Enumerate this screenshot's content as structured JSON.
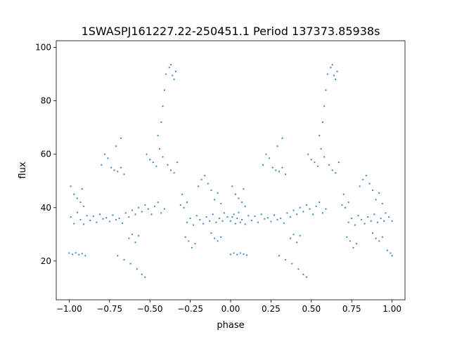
{
  "chart_data": {
    "type": "scatter",
    "title": "1SWASPJ161227.22-250451.1 Period 137373.85938s",
    "xlabel": "phase",
    "ylabel": "flux",
    "xlim": [
      -1.08,
      1.08
    ],
    "ylim": [
      5.5,
      102.5
    ],
    "xticks": [
      {
        "value": -1.0,
        "label": "−1.00"
      },
      {
        "value": -0.75,
        "label": "−0.75"
      },
      {
        "value": -0.5,
        "label": "−0.50"
      },
      {
        "value": -0.25,
        "label": "−0.25"
      },
      {
        "value": 0.0,
        "label": "0.00"
      },
      {
        "value": 0.25,
        "label": "0.25"
      },
      {
        "value": 0.5,
        "label": "0.50"
      },
      {
        "value": 0.75,
        "label": "0.75"
      },
      {
        "value": 1.0,
        "label": "1.00"
      }
    ],
    "yticks": [
      {
        "value": 20,
        "label": "20"
      },
      {
        "value": 40,
        "label": "40"
      },
      {
        "value": 60,
        "label": "60"
      },
      {
        "value": 80,
        "label": "80"
      },
      {
        "value": 100,
        "label": "100"
      }
    ],
    "grid": false,
    "legend": "none",
    "marker_color": "#1f77b4",
    "series": [
      {
        "phase_range": [
          -1.0,
          1.0
        ],
        "folded": true,
        "points": [
          [
            -1.0,
            23.0
          ],
          [
            -0.98,
            22.5
          ],
          [
            -0.96,
            23.1
          ],
          [
            -0.94,
            22.4
          ],
          [
            -0.92,
            22.8
          ],
          [
            -0.9,
            22.0
          ],
          [
            -0.99,
            36.5
          ],
          [
            -0.97,
            34.0
          ],
          [
            -0.95,
            38.2
          ],
          [
            -0.93,
            35.5
          ],
          [
            -0.91,
            33.8
          ],
          [
            -0.89,
            37.0
          ],
          [
            -0.87,
            35.2
          ],
          [
            -0.85,
            36.8
          ],
          [
            -0.83,
            34.5
          ],
          [
            -0.81,
            37.5
          ],
          [
            -0.79,
            35.8
          ],
          [
            -0.77,
            36.2
          ],
          [
            -0.99,
            48.0
          ],
          [
            -0.97,
            45.0
          ],
          [
            -0.95,
            43.5
          ],
          [
            -0.93,
            42.0
          ],
          [
            -0.92,
            47.0
          ],
          [
            -0.91,
            40.5
          ],
          [
            -0.75,
            34.8
          ],
          [
            -0.73,
            37.2
          ],
          [
            -0.71,
            35.5
          ],
          [
            -0.69,
            36.0
          ],
          [
            -0.67,
            34.2
          ],
          [
            -0.65,
            38.0
          ],
          [
            -0.8,
            56.0
          ],
          [
            -0.78,
            60.0
          ],
          [
            -0.76,
            58.5
          ],
          [
            -0.74,
            55.0
          ],
          [
            -0.72,
            54.0
          ],
          [
            -0.7,
            53.5
          ],
          [
            -0.68,
            55.0
          ],
          [
            -0.66,
            52.5
          ],
          [
            -0.71,
            63.0
          ],
          [
            -0.68,
            66.0
          ],
          [
            -0.63,
            28.5
          ],
          [
            -0.61,
            30.0
          ],
          [
            -0.59,
            27.0
          ],
          [
            -0.57,
            29.5
          ],
          [
            -0.7,
            22.0
          ],
          [
            -0.66,
            20.5
          ],
          [
            -0.62,
            19.0
          ],
          [
            -0.58,
            17.0
          ],
          [
            -0.55,
            15.0
          ],
          [
            -0.53,
            14.0
          ],
          [
            -0.63,
            36.5
          ],
          [
            -0.61,
            39.0
          ],
          [
            -0.59,
            37.5
          ],
          [
            -0.57,
            40.0
          ],
          [
            -0.55,
            38.5
          ],
          [
            -0.53,
            41.0
          ],
          [
            -0.51,
            39.5
          ],
          [
            -0.49,
            37.5
          ],
          [
            -0.47,
            40.5
          ],
          [
            -0.45,
            42.0
          ],
          [
            -0.43,
            38.0
          ],
          [
            -0.41,
            39.5
          ],
          [
            -0.52,
            60.0
          ],
          [
            -0.5,
            58.0
          ],
          [
            -0.48,
            57.0
          ],
          [
            -0.46,
            55.5
          ],
          [
            -0.44,
            62.0
          ],
          [
            -0.42,
            59.0
          ],
          [
            -0.45,
            67.0
          ],
          [
            -0.43,
            72.0
          ],
          [
            -0.42,
            78.0
          ],
          [
            -0.41,
            84.0
          ],
          [
            -0.4,
            90.0
          ],
          [
            -0.38,
            92.5
          ],
          [
            -0.36,
            89.5
          ],
          [
            -0.34,
            91.0
          ],
          [
            -0.35,
            88.0
          ],
          [
            -0.37,
            93.5
          ],
          [
            -0.39,
            56.0
          ],
          [
            -0.37,
            54.0
          ],
          [
            -0.35,
            53.0
          ],
          [
            -0.33,
            57.0
          ],
          [
            -0.31,
            41.0
          ],
          [
            -0.29,
            40.0
          ],
          [
            -0.27,
            42.0
          ],
          [
            -0.3,
            45.0
          ],
          [
            -0.28,
            29.0
          ],
          [
            -0.26,
            27.5
          ],
          [
            -0.24,
            25.0
          ],
          [
            -0.22,
            26.5
          ],
          [
            -0.27,
            34.5
          ],
          [
            -0.25,
            36.0
          ],
          [
            -0.23,
            33.5
          ],
          [
            -0.21,
            37.0
          ],
          [
            -0.19,
            35.5
          ],
          [
            -0.17,
            34.0
          ],
          [
            -0.15,
            36.5
          ],
          [
            -0.13,
            35.0
          ],
          [
            -0.11,
            37.5
          ],
          [
            -0.09,
            34.5
          ],
          [
            -0.07,
            36.0
          ],
          [
            -0.05,
            35.0
          ],
          [
            -0.2,
            48.0
          ],
          [
            -0.18,
            50.5
          ],
          [
            -0.16,
            52.0
          ],
          [
            -0.14,
            49.0
          ],
          [
            -0.12,
            46.5
          ],
          [
            -0.1,
            43.0
          ],
          [
            -0.08,
            45.5
          ],
          [
            -0.06,
            41.5
          ],
          [
            -0.12,
            30.5
          ],
          [
            -0.1,
            28.5
          ],
          [
            -0.08,
            27.5
          ],
          [
            -0.06,
            29.0
          ],
          [
            -0.04,
            38.0
          ],
          [
            -0.02,
            36.5
          ],
          [
            0.0,
            35.0
          ],
          [
            0.02,
            37.5
          ],
          [
            0.04,
            36.0
          ],
          [
            0.06,
            34.5
          ],
          [
            0.0,
            22.5
          ],
          [
            0.02,
            23.0
          ],
          [
            0.04,
            22.4
          ],
          [
            0.06,
            23.0
          ],
          [
            0.08,
            22.6
          ],
          [
            0.1,
            22.2
          ],
          [
            0.01,
            36.5
          ],
          [
            0.03,
            34.0
          ],
          [
            0.05,
            38.2
          ],
          [
            0.07,
            35.5
          ],
          [
            0.09,
            33.8
          ],
          [
            0.11,
            37.0
          ],
          [
            0.13,
            35.2
          ],
          [
            0.15,
            36.8
          ],
          [
            0.17,
            34.5
          ],
          [
            0.19,
            37.5
          ],
          [
            0.21,
            35.8
          ],
          [
            0.23,
            36.2
          ],
          [
            0.01,
            48.0
          ],
          [
            0.03,
            45.0
          ],
          [
            0.05,
            43.5
          ],
          [
            0.07,
            42.0
          ],
          [
            0.08,
            47.0
          ],
          [
            0.09,
            40.5
          ],
          [
            0.25,
            34.8
          ],
          [
            0.27,
            37.2
          ],
          [
            0.29,
            35.5
          ],
          [
            0.31,
            36.0
          ],
          [
            0.33,
            34.2
          ],
          [
            0.35,
            38.0
          ],
          [
            0.2,
            56.0
          ],
          [
            0.22,
            60.0
          ],
          [
            0.24,
            58.5
          ],
          [
            0.26,
            55.0
          ],
          [
            0.28,
            54.0
          ],
          [
            0.3,
            53.5
          ],
          [
            0.32,
            55.0
          ],
          [
            0.34,
            52.5
          ],
          [
            0.29,
            63.0
          ],
          [
            0.32,
            66.0
          ],
          [
            0.37,
            28.5
          ],
          [
            0.39,
            30.0
          ],
          [
            0.41,
            27.0
          ],
          [
            0.43,
            29.5
          ],
          [
            0.3,
            22.0
          ],
          [
            0.34,
            20.5
          ],
          [
            0.38,
            19.0
          ],
          [
            0.42,
            17.0
          ],
          [
            0.45,
            15.0
          ],
          [
            0.47,
            14.0
          ],
          [
            0.37,
            36.5
          ],
          [
            0.39,
            39.0
          ],
          [
            0.41,
            37.5
          ],
          [
            0.43,
            40.0
          ],
          [
            0.45,
            38.5
          ],
          [
            0.47,
            41.0
          ],
          [
            0.49,
            39.5
          ],
          [
            0.51,
            37.5
          ],
          [
            0.53,
            40.5
          ],
          [
            0.55,
            42.0
          ],
          [
            0.57,
            38.0
          ],
          [
            0.59,
            39.5
          ],
          [
            0.48,
            60.0
          ],
          [
            0.5,
            58.0
          ],
          [
            0.52,
            57.0
          ],
          [
            0.54,
            55.5
          ],
          [
            0.56,
            62.0
          ],
          [
            0.58,
            59.0
          ],
          [
            0.55,
            67.0
          ],
          [
            0.57,
            72.0
          ],
          [
            0.58,
            78.0
          ],
          [
            0.59,
            84.0
          ],
          [
            0.6,
            90.0
          ],
          [
            0.62,
            92.5
          ],
          [
            0.64,
            89.5
          ],
          [
            0.66,
            91.0
          ],
          [
            0.65,
            88.0
          ],
          [
            0.63,
            93.5
          ],
          [
            0.61,
            56.0
          ],
          [
            0.63,
            54.0
          ],
          [
            0.65,
            53.0
          ],
          [
            0.67,
            57.0
          ],
          [
            0.69,
            41.0
          ],
          [
            0.71,
            40.0
          ],
          [
            0.73,
            42.0
          ],
          [
            0.7,
            45.0
          ],
          [
            0.72,
            29.0
          ],
          [
            0.74,
            27.5
          ],
          [
            0.76,
            25.0
          ],
          [
            0.78,
            26.5
          ],
          [
            0.73,
            34.5
          ],
          [
            0.75,
            36.0
          ],
          [
            0.77,
            33.5
          ],
          [
            0.79,
            37.0
          ],
          [
            0.81,
            35.5
          ],
          [
            0.83,
            34.0
          ],
          [
            0.85,
            36.5
          ],
          [
            0.87,
            35.0
          ],
          [
            0.89,
            37.5
          ],
          [
            0.91,
            34.5
          ],
          [
            0.93,
            36.0
          ],
          [
            0.95,
            35.0
          ],
          [
            0.8,
            48.0
          ],
          [
            0.82,
            50.5
          ],
          [
            0.84,
            52.0
          ],
          [
            0.86,
            49.0
          ],
          [
            0.88,
            46.5
          ],
          [
            0.9,
            43.0
          ],
          [
            0.92,
            45.5
          ],
          [
            0.94,
            41.5
          ],
          [
            0.88,
            30.5
          ],
          [
            0.9,
            28.5
          ],
          [
            0.92,
            27.5
          ],
          [
            0.94,
            29.0
          ],
          [
            0.96,
            38.0
          ],
          [
            0.98,
            36.5
          ],
          [
            1.0,
            35.0
          ],
          [
            0.97,
            24.0
          ],
          [
            0.99,
            23.0
          ],
          [
            1.0,
            22.0
          ]
        ]
      }
    ]
  }
}
